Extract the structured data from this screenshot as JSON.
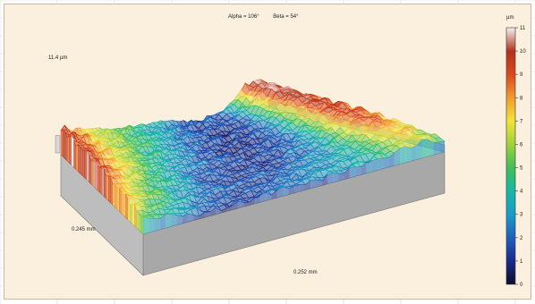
{
  "view": {
    "alpha_label": "Alpha = 106°",
    "beta_label": "Beta = 54°"
  },
  "axes": {
    "z_label": "11.4 µm",
    "y_label": "0.245 mm",
    "x_label": "0.252 mm"
  },
  "colorbar": {
    "unit": "µm",
    "min": 0,
    "max": 11,
    "ticks": [
      "0",
      "1",
      "2",
      "3",
      "4",
      "5",
      "6",
      "7",
      "8",
      "9",
      "10",
      "11"
    ],
    "colors": [
      "#0d0d2b",
      "#1b2a8a",
      "#1f5fbf",
      "#1a9cc4",
      "#17b7a6",
      "#3fbf5a",
      "#9fd13a",
      "#f2e43a",
      "#f29a2e",
      "#d9481f",
      "#b0341e",
      "#f4f0f2"
    ]
  },
  "theme": {
    "panel_bg": "#fbefde",
    "base_gray": "#a8a8a8"
  }
}
